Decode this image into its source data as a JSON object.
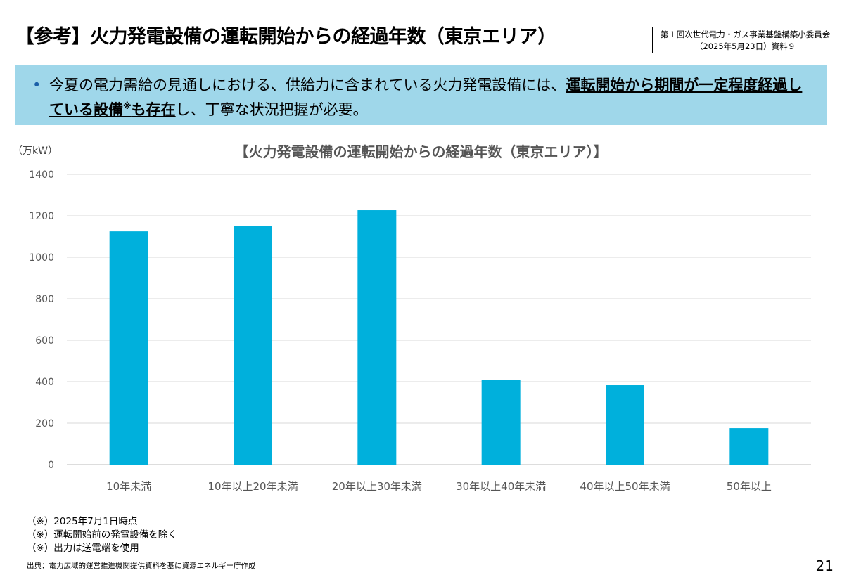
{
  "header": {
    "title": "【参考】火力発電設備の運転開始からの経過年数（東京エリア）",
    "meeting_line1": "第１回次世代電力・ガス事業基盤構築小委員会",
    "meeting_line2": "（2025年5月23日）資料９"
  },
  "banner": {
    "bullet": "•",
    "text_plain1": "今夏の電力需給の見通しにおける、供給力に含まれている火力発電設備には、",
    "text_bold1": "運転開始から期間が一定程度経過している設備",
    "text_mark": "※",
    "text_bold2": "も存在",
    "text_plain2": "し、丁寧な状況把握が必要。"
  },
  "chart_data": {
    "type": "bar",
    "title": "【火力発電設備の運転開始からの経過年数（東京エリア）】",
    "ylabel": "（万kW）",
    "xlabel": "",
    "categories": [
      "10年未満",
      "10年以上20年未満",
      "20年以上30年未満",
      "30年以上40年未満",
      "40年以上50年未満",
      "50年以上"
    ],
    "values": [
      1125,
      1150,
      1227,
      410,
      383,
      176
    ],
    "ylim": [
      0,
      1400
    ],
    "yticks": [
      "0",
      "200",
      "400",
      "600",
      "800",
      "1000",
      "1200",
      "1400"
    ],
    "grid": true,
    "color": "#00b0dc"
  },
  "notes": [
    "（※）2025年7月1日時点",
    "（※）運転開始前の発電設備を除く",
    "（※）出力は送電端を使用"
  ],
  "source": "出典：電力広域的運営推進機関提供資料を基に資源エネルギー庁作成",
  "page_number": "21"
}
